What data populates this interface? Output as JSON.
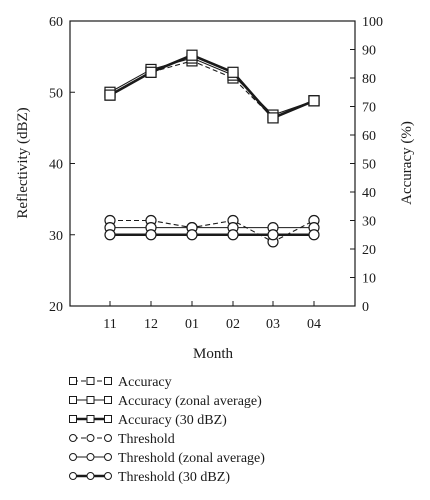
{
  "chart_data": {
    "type": "line",
    "categories": [
      "11",
      "12",
      "01",
      "02",
      "03",
      "04"
    ],
    "xlabel": "Month",
    "ylabel_left": "Reflectivity (dBZ)",
    "ylabel_right": "Accuracy (%)",
    "ylim_left": [
      20,
      60
    ],
    "ylim_right": [
      0,
      100
    ],
    "yticks_left": [
      "20",
      "30",
      "40",
      "50",
      "60"
    ],
    "yticks_right": [
      "0",
      "10",
      "20",
      "30",
      "40",
      "50",
      "60",
      "70",
      "80",
      "90",
      "100"
    ],
    "grid": false,
    "legend_position": "bottom",
    "series": [
      {
        "name": "Accuracy",
        "axis": "right",
        "marker": "square",
        "line": "dashed",
        "values": [
          74,
          82,
          86,
          80,
          66,
          72
        ]
      },
      {
        "name": "Accuracy (zonal average)",
        "axis": "right",
        "marker": "square",
        "line": "thin",
        "values": [
          75,
          83,
          87,
          81,
          67,
          72
        ]
      },
      {
        "name": "Accuracy (30 dBZ)",
        "axis": "right",
        "marker": "square",
        "line": "thick",
        "values": [
          74,
          82,
          88,
          82,
          66,
          72
        ]
      },
      {
        "name": "Threshold",
        "axis": "left",
        "marker": "circle",
        "line": "dashed",
        "values": [
          32,
          32,
          31,
          32,
          29,
          32
        ]
      },
      {
        "name": "Threshold (zonal average)",
        "axis": "left",
        "marker": "circle",
        "line": "thin",
        "values": [
          31,
          31,
          31,
          31,
          31,
          31
        ]
      },
      {
        "name": "Threshold (30 dBZ)",
        "axis": "left",
        "marker": "circle",
        "line": "thick",
        "values": [
          30,
          30,
          30,
          30,
          30,
          30
        ]
      }
    ]
  }
}
